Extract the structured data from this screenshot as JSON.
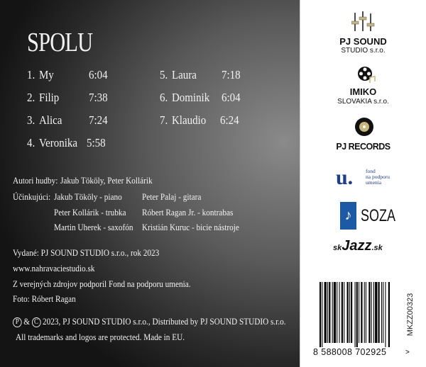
{
  "album": {
    "title": "SPOLU"
  },
  "tracks": [
    {
      "no": "1.",
      "name": "My",
      "time": "6:04"
    },
    {
      "no": "2.",
      "name": "Filip",
      "time": "7:38"
    },
    {
      "no": "3.",
      "name": "Alica",
      "time": "7:24"
    },
    {
      "no": "4.",
      "name": "Veronika",
      "time": "5:58"
    },
    {
      "no": "5.",
      "name": "Laura",
      "time": "7:18"
    },
    {
      "no": "6.",
      "name": "Dominik",
      "time": "6:04"
    },
    {
      "no": "7.",
      "name": "Klaudio",
      "time": "6:24"
    }
  ],
  "credits": {
    "authors_label": "Autori hudby:",
    "authors": "Jakub Tököly,  Peter Kollárik",
    "performers_label": "Účinkujúci:",
    "performers": [
      "Jakub Tököly - piano",
      "Peter Palaj - gitara",
      "Peter Kollárik - trubka",
      "Róbert Ragan Jr. - kontrabas",
      "Martin Uherek - saxofón",
      "Kristián Kuruc - bicie nástroje"
    ]
  },
  "info": [
    "Vydané: PJ SOUND STUDIO s.r.o., rok 2023",
    "www.nahravaciestudio.sk",
    "Z verejných zdrojov podporil Fond na podporu umenia.",
    "Foto: Róbert Ragan"
  ],
  "copyright": {
    "p": "P",
    "amp": "&",
    "c": "C",
    "text": "2023, PJ SOUND STUDIO s.r.o., Distributed by PJ SOUND STUDIO s.r.o.",
    "line2": "All trademarks and logos are protected. Made in EU."
  },
  "logos": {
    "pjsound": {
      "line1": "PJ SOUND",
      "line2": "STUDIO s.r.o."
    },
    "imiko": {
      "line1": "IMIKO",
      "line2": "SLOVAKIA s.r.o."
    },
    "pjrecords": "PJ RECORDS",
    "fpu": {
      "mark": "u.",
      "text1": "fond",
      "text2": "na podporu",
      "text3": "umenia"
    },
    "soza": "SOZA",
    "skjazz": {
      "pre": "sk",
      "main": "Jazz",
      "post": ".sk"
    }
  },
  "barcode": {
    "digits": "8 588008 702925",
    "arrow": ">",
    "catalog": "MKZZ00323"
  },
  "colors": {
    "gold": "#c8b77a",
    "fpu_blue": "#1f3d8f",
    "soza_blue": "#1c5aa6"
  }
}
